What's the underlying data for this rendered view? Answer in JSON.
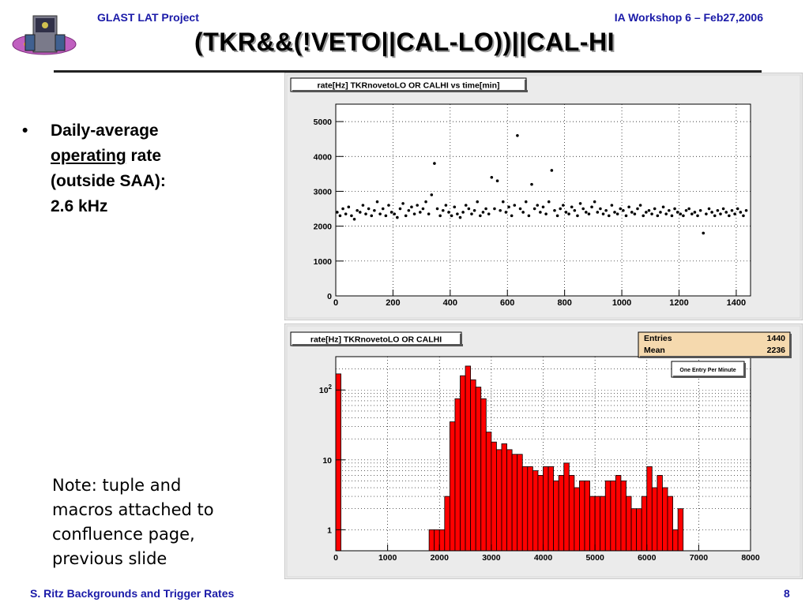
{
  "header": {
    "left": "GLAST LAT Project",
    "right": "IA Workshop 6 –  Feb27,2006",
    "title": "(TKR&&(!VETO||CAL-LO))||CAL-HI"
  },
  "logo": {
    "icon": "glast-satellite-logo-icon"
  },
  "bullet": {
    "marker": "•",
    "line1": "Daily-average",
    "line2_underlined": "operating",
    "line2_rest": " rate",
    "line3": "(outside SAA):",
    "line4": "2.6 kHz"
  },
  "note": {
    "lines": [
      "Note: tuple and",
      "macros attached to",
      "confluence page,",
      "previous slide"
    ]
  },
  "footer": {
    "left": "S. Ritz   Backgrounds and Trigger Rates",
    "page": "8"
  },
  "colors": {
    "header_text": "#1a1aa8",
    "histogram_fill": "#ff0000",
    "stats_box": "#f5d9ae",
    "panel_bg": "#ebebeb",
    "plot_bg": "#ffffff"
  },
  "chart_data": [
    {
      "type": "scatter",
      "title": "rate[Hz] TKRnovetoLO OR CALHI vs time[min]",
      "xlim": [
        0,
        1450
      ],
      "ylim": [
        0,
        5500
      ],
      "xticks": [
        0,
        200,
        400,
        600,
        800,
        1000,
        1200,
        1400
      ],
      "yticks": [
        0,
        1000,
        2000,
        3000,
        4000,
        5000
      ],
      "grid": true,
      "series": [
        {
          "x": [
            5,
            15,
            25,
            35,
            45,
            55,
            65,
            75,
            85,
            95,
            105,
            115,
            125,
            135,
            145,
            155,
            165,
            175,
            185,
            195,
            205,
            215,
            225,
            235,
            245,
            255,
            265,
            275,
            285,
            295,
            305,
            315,
            325,
            335,
            345,
            355,
            365,
            375,
            385,
            395,
            405,
            415,
            425,
            435,
            445,
            455,
            465,
            475,
            485,
            495,
            505,
            515,
            525,
            535,
            545,
            555,
            565,
            575,
            585,
            595,
            605,
            615,
            625,
            635,
            645,
            655,
            665,
            675,
            685,
            695,
            705,
            715,
            725,
            735,
            745,
            755,
            765,
            775,
            785,
            795,
            805,
            815,
            825,
            835,
            845,
            855,
            865,
            875,
            885,
            895,
            905,
            915,
            925,
            935,
            945,
            955,
            965,
            975,
            985,
            995,
            1005,
            1015,
            1025,
            1035,
            1045,
            1055,
            1065,
            1075,
            1085,
            1095,
            1105,
            1115,
            1125,
            1135,
            1145,
            1155,
            1165,
            1175,
            1185,
            1195,
            1205,
            1215,
            1225,
            1235,
            1245,
            1255,
            1265,
            1275,
            1285,
            1295,
            1305,
            1315,
            1325,
            1335,
            1345,
            1355,
            1365,
            1375,
            1385,
            1395,
            1405,
            1415,
            1425,
            1435
          ],
          "y": [
            2400,
            2300,
            2500,
            2350,
            2550,
            2300,
            2200,
            2450,
            2400,
            2600,
            2350,
            2500,
            2300,
            2450,
            2700,
            2350,
            2500,
            2300,
            2600,
            2400,
            2350,
            2250,
            2500,
            2650,
            2300,
            2450,
            2550,
            2350,
            2600,
            2400,
            2500,
            2700,
            2350,
            2900,
            3800,
            2500,
            2300,
            2450,
            2600,
            2400,
            2300,
            2550,
            2350,
            2250,
            2400,
            2600,
            2500,
            2350,
            2450,
            2700,
            2300,
            2400,
            2500,
            2350,
            3400,
            2500,
            3300,
            2450,
            2700,
            2400,
            2550,
            2300,
            2600,
            4600,
            2500,
            2400,
            2700,
            2300,
            3200,
            2500,
            2600,
            2400,
            2550,
            2350,
            2700,
            3600,
            2450,
            2300,
            2500,
            2600,
            2400,
            2350,
            2550,
            2450,
            2300,
            2650,
            2500,
            2400,
            2350,
            2550,
            2700,
            2400,
            2500,
            2350,
            2450,
            2300,
            2600,
            2400,
            2350,
            2500,
            2450,
            2300,
            2550,
            2400,
            2350,
            2500,
            2600,
            2300,
            2400,
            2450,
            2350,
            2500,
            2300,
            2400,
            2550,
            2350,
            2450,
            2300,
            2500,
            2400,
            2350,
            2300,
            2450,
            2500,
            2350,
            2400,
            2300,
            2450,
            1800,
            2350,
            2500,
            2400,
            2300,
            2450,
            2350,
            2500,
            2400,
            2300,
            2450,
            2350,
            2500,
            2400,
            2300,
            2450
          ]
        }
      ]
    },
    {
      "type": "bar",
      "title": "rate[Hz] TKRnovetoLO OR CALHI",
      "xlim": [
        0,
        8000
      ],
      "yscale": "log",
      "ylim": [
        0.5,
        300
      ],
      "xticks": [
        0,
        1000,
        2000,
        3000,
        4000,
        5000,
        6000,
        7000,
        8000
      ],
      "yticks": [
        1,
        10,
        100
      ],
      "ytick_labels": [
        "1",
        "10",
        "10^2"
      ],
      "grid": true,
      "bin_width": 100,
      "bin_start": 0,
      "values": [
        170,
        0,
        0,
        0,
        0,
        0,
        0,
        0,
        0,
        0,
        0,
        0,
        0,
        0,
        0,
        0,
        0,
        0,
        1,
        1,
        1,
        3,
        35,
        75,
        160,
        220,
        140,
        110,
        75,
        25,
        18,
        14,
        17,
        14,
        12,
        12,
        8,
        8,
        7,
        6,
        8,
        8,
        5,
        6,
        9,
        6,
        4,
        5,
        5,
        3,
        3,
        3,
        5,
        5,
        6,
        5,
        3,
        2,
        2,
        3,
        8,
        4,
        6,
        4,
        3,
        1,
        2
      ],
      "stats": {
        "entries_label": "Entries",
        "entries": "1440",
        "mean_label": "Mean",
        "mean": "2236"
      },
      "note_box": "One Entry Per Minute"
    }
  ]
}
